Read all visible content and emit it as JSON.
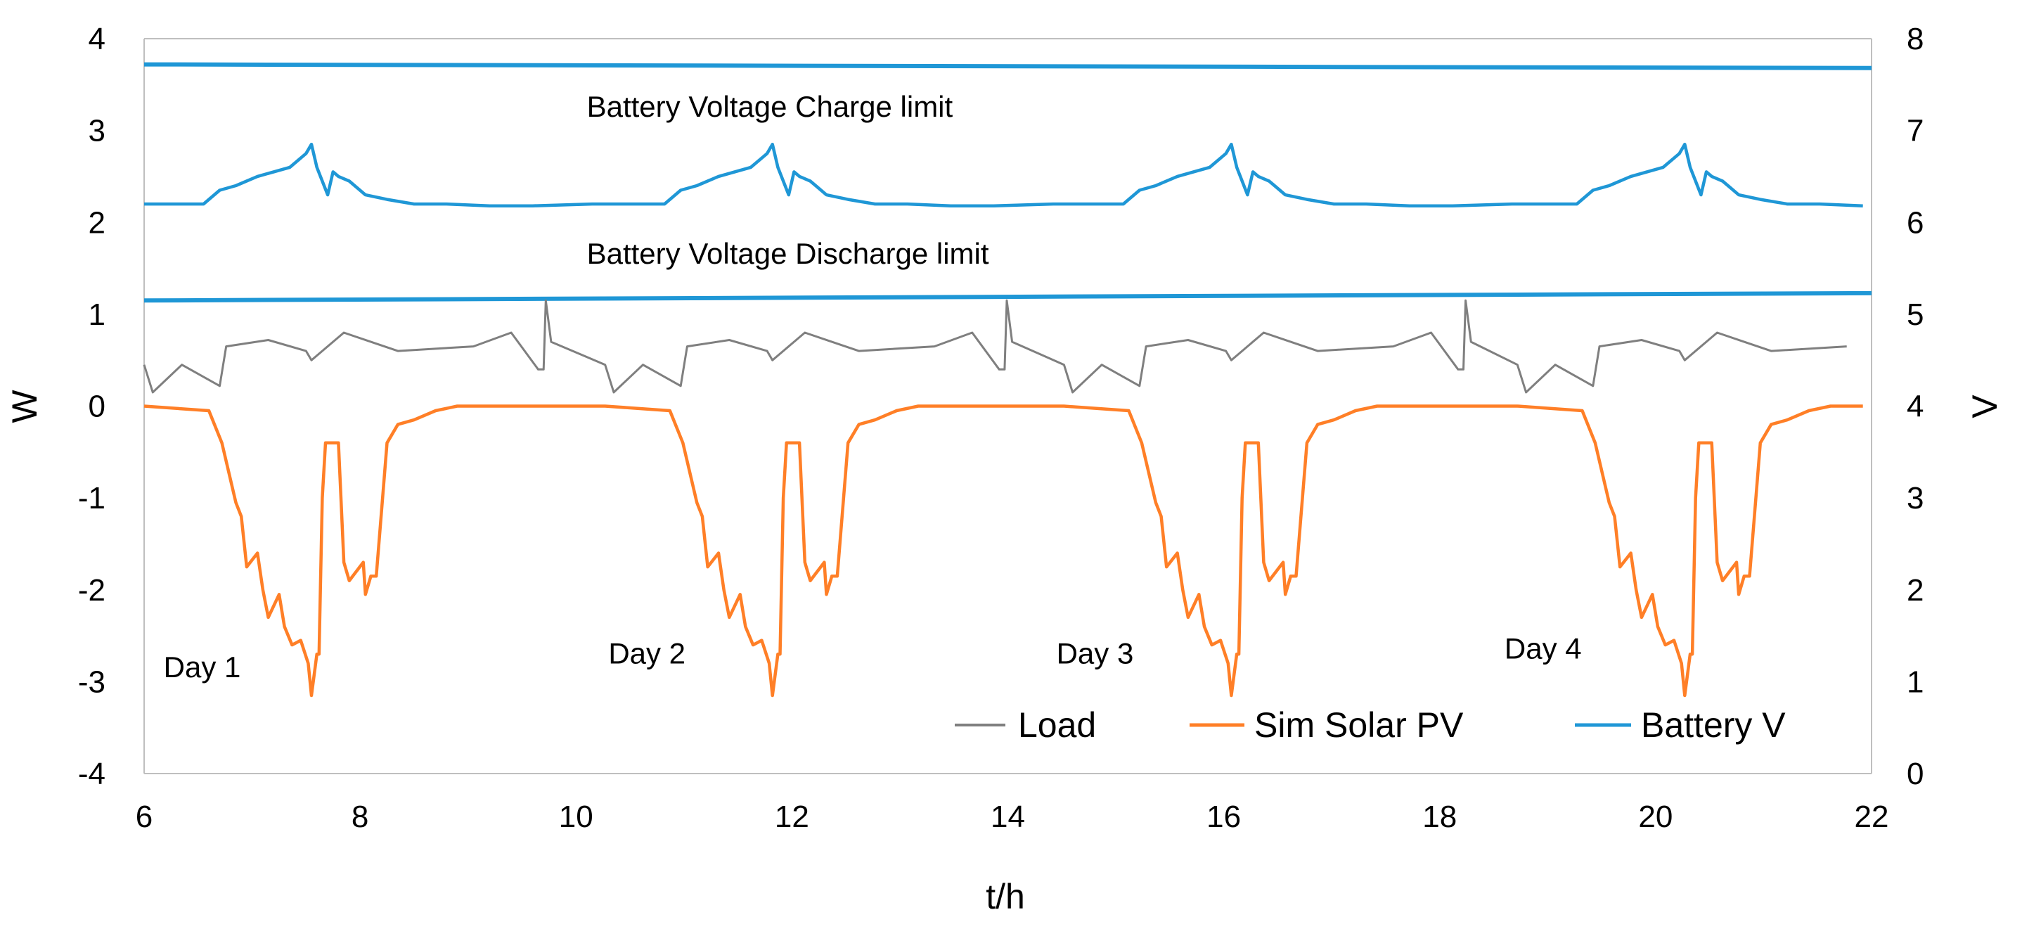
{
  "chart_data": {
    "type": "line",
    "title": "",
    "xlabel": "t/h",
    "ylabel_left": "W",
    "ylabel_right": "V",
    "xlim": [
      6,
      22
    ],
    "ylim_left": [
      -4,
      4
    ],
    "ylim_right": [
      0,
      8
    ],
    "x_ticks": [
      6,
      8,
      10,
      12,
      14,
      16,
      18,
      20,
      22
    ],
    "y_ticks_left": [
      -4,
      -3,
      -2,
      -1,
      0,
      1,
      2,
      3,
      4
    ],
    "y_ticks_right": [
      0,
      1,
      2,
      3,
      4,
      5,
      6,
      7,
      8
    ],
    "grid": false,
    "legend_position": "bottom-right",
    "colors": {
      "load": "#7f7f7f",
      "solar": "#ff7f27",
      "battery": "#1f97d6",
      "limit": "#1f97d6"
    },
    "annotations": [
      {
        "text": "Battery  Voltage Charge limit",
        "x": 10.1,
        "y": 3.15
      },
      {
        "text": "Battery  Voltage Discharge limit",
        "x": 10.1,
        "y": 1.55
      },
      {
        "text": "Day 1",
        "x": 6.18,
        "y": -2.95
      },
      {
        "text": "Day 2",
        "x": 10.3,
        "y": -2.8
      },
      {
        "text": "Day 3",
        "x": 14.45,
        "y": -2.8
      },
      {
        "text": "Day 4",
        "x": 18.6,
        "y": -2.75
      }
    ],
    "reference_lines": [
      {
        "name": "Battery Voltage Charge limit",
        "axis": "right",
        "x": [
          6,
          22
        ],
        "y": [
          7.72,
          7.68
        ]
      },
      {
        "name": "Battery Voltage Discharge limit",
        "axis": "right",
        "x": [
          6,
          22
        ],
        "y": [
          5.15,
          5.23
        ]
      }
    ],
    "series": [
      {
        "name": "Load",
        "axis": "left",
        "color": "#7f7f7f",
        "day_pattern": {
          "x": [
            0,
            0.08,
            0.35,
            0.7,
            0.76,
            1.15,
            1.5,
            1.55,
            1.85,
            2.1,
            2.35,
            3.05,
            3.4,
            3.65,
            3.7,
            3.72,
            3.77
          ],
          "y": [
            0.45,
            0.15,
            0.45,
            0.22,
            0.65,
            0.72,
            0.6,
            0.5,
            0.8,
            0.7,
            0.6,
            0.65,
            0.8,
            0.4,
            0.4,
            1.15,
            0.7
          ]
        }
      },
      {
        "name": "Sim Solar PV",
        "axis": "left",
        "color": "#ff7f27",
        "day_pattern": {
          "x": [
            0,
            0.6,
            0.72,
            0.85,
            0.9,
            0.95,
            1.05,
            1.1,
            1.15,
            1.25,
            1.3,
            1.37,
            1.45,
            1.52,
            1.55,
            1.6,
            1.62,
            1.65,
            1.68,
            1.8,
            1.85,
            1.9,
            2.03,
            2.05,
            2.1,
            2.15,
            2.25,
            2.35,
            2.5,
            2.7,
            2.9,
            3.05,
            3.2,
            3.5,
            4.15
          ],
          "y": [
            0,
            -0.05,
            -0.4,
            -1.05,
            -1.2,
            -1.75,
            -1.6,
            -2.0,
            -2.3,
            -2.05,
            -2.4,
            -2.6,
            -2.55,
            -2.8,
            -3.15,
            -2.7,
            -2.7,
            -1.0,
            -0.4,
            -0.4,
            -1.7,
            -1.9,
            -1.7,
            -2.05,
            -1.85,
            -1.85,
            -0.4,
            -0.2,
            -0.15,
            -0.05,
            0,
            0,
            0,
            0,
            0
          ]
        }
      },
      {
        "name": "Battery V",
        "axis": "right",
        "color": "#1f97d6",
        "day_pattern": {
          "x": [
            0,
            0.55,
            0.7,
            0.85,
            1.05,
            1.2,
            1.35,
            1.5,
            1.55,
            1.6,
            1.7,
            1.75,
            1.8,
            1.9,
            1.95,
            2.05,
            2.25,
            2.5,
            2.8,
            3.2,
            3.6,
            4.15
          ],
          "y": [
            6.2,
            6.2,
            6.35,
            6.4,
            6.5,
            6.55,
            6.6,
            6.75,
            6.85,
            6.6,
            6.3,
            6.55,
            6.5,
            6.45,
            6.4,
            6.3,
            6.25,
            6.2,
            6.2,
            6.18,
            6.18,
            6.2
          ]
        }
      }
    ],
    "day_starts": [
      6.0,
      10.27,
      14.52,
      18.72
    ],
    "data_end": 22
  },
  "legend": {
    "load": "Load",
    "solar": "Sim Solar PV",
    "battery": "Battery V"
  }
}
